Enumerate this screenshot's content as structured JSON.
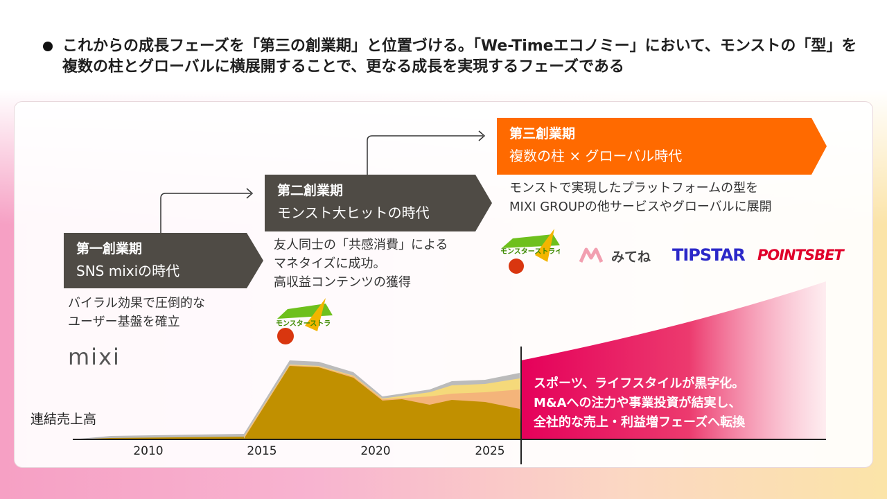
{
  "header": {
    "bullet_text": "これからの成長フェーズを「第三の創業期」と位置づける。「We-Timeエコノミー」において、モンストの「型」を複数の柱とグローバルに横展開することで、更なる成長を実現するフェーズである"
  },
  "phases": [
    {
      "title": "第一創業期",
      "subtitle": "SNS mixiの時代",
      "desc": [
        "バイラル効果で圧倒的な",
        "ユーザー基盤を確立"
      ]
    },
    {
      "title": "第二創業期",
      "subtitle": "モンスト大ヒットの時代",
      "desc": [
        "友人同士の「共感消費」による",
        "マネタイズに成功。",
        "高収益コンテンツの獲得"
      ]
    },
    {
      "title": "第三創業期",
      "subtitle": "複数の柱 × グローバル時代",
      "desc": [
        "モンストで実現したプラットフォームの型を",
        "MIXI GROUPの他サービスやグローバルに展開"
      ]
    }
  ],
  "logos": {
    "mixi": "mixi",
    "monst": "モンスターストライク",
    "mitene": "みてね",
    "tipstar": "TIPSTAR",
    "pointsbet": "POINTSBET"
  },
  "chart": {
    "ylabel": "連結売上高",
    "ticks": [
      "2010",
      "2015",
      "2020",
      "2025"
    ],
    "note": [
      "スポーツ、ライフスタイルが黒字化。",
      "M&Aへの注力や事業投資が結実し、",
      "全社的な売上・利益増フェーズへ転換"
    ]
  },
  "colors": {
    "dark": "#4f4b45",
    "orange": "#ff6a00",
    "gold": "#c19000",
    "magenta": "#e5005a"
  }
}
